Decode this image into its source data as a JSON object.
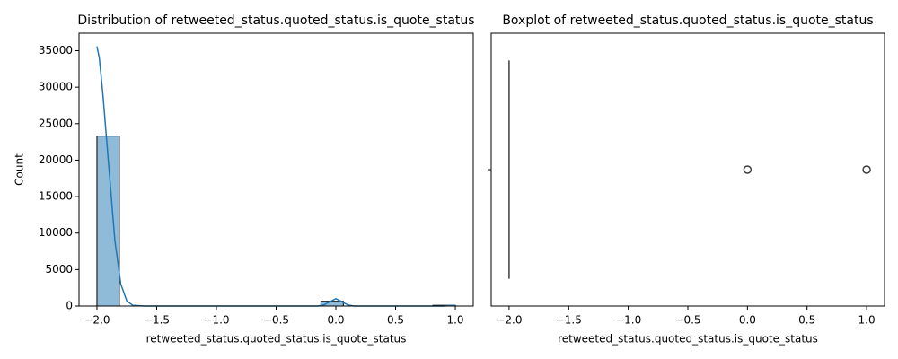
{
  "chart_data": [
    {
      "type": "histogram",
      "title": "Distribution of retweeted_status.quoted_status.is_quote_status",
      "xlabel": "retweeted_status.quoted_status.is_quote_status",
      "ylabel": "Count",
      "bins": [
        -2,
        -1.8125,
        -1.625,
        -1.4375,
        -1.25,
        -1.0625,
        -0.875,
        -0.6875,
        -0.5,
        -0.3125,
        -0.125,
        0.0625,
        0.25,
        0.4375,
        0.625,
        0.8125,
        1.0
      ],
      "counts": [
        23300,
        0,
        0,
        0,
        0,
        0,
        0,
        0,
        0,
        0,
        650,
        0,
        0,
        0,
        0,
        100
      ],
      "color": "rgba(31,119,180,0.5)",
      "edgecolor": "#000000",
      "kde": {
        "color": "#1f77b4",
        "x": [
          -2.0,
          -1.98,
          -1.95,
          -1.9,
          -1.85,
          -1.8,
          -1.75,
          -1.7,
          -1.6,
          -0.15,
          -0.1,
          -0.05,
          0.0,
          0.05,
          0.1,
          0.15,
          0.9,
          1.0
        ],
        "values": [
          35600,
          34000,
          29000,
          19000,
          9000,
          3000,
          700,
          100,
          0,
          0,
          150,
          600,
          1000,
          600,
          150,
          0,
          0,
          100
        ]
      },
      "xlim": [
        -2.15,
        1.15
      ],
      "xticks": [
        {
          "value": -2,
          "label": "−2.0"
        },
        {
          "value": -1.5,
          "label": "−1.5"
        },
        {
          "value": -1,
          "label": "−1.0"
        },
        {
          "value": -0.5,
          "label": "−0.5"
        },
        {
          "value": 0,
          "label": "0.0"
        },
        0.5,
        {
          "value": 1,
          "label": "1.0"
        }
      ],
      "ylim": [
        0,
        37400
      ],
      "yticks": [
        0,
        5000,
        10000,
        15000,
        20000,
        25000,
        30000,
        35000
      ]
    },
    {
      "type": "boxplot",
      "title": "Boxplot of retweeted_status.quoted_status.is_quote_status",
      "xlabel": "retweeted_status.quoted_status.is_quote_status",
      "color": "#1f77b4",
      "box": {
        "whislo": -2,
        "q1": -2,
        "median": -2,
        "q3": -2,
        "whishi": -2,
        "fliers": [
          0,
          1
        ]
      },
      "xlim": [
        -2.15,
        1.15
      ],
      "xticks": [
        {
          "value": -2,
          "label": "−2.0"
        },
        {
          "value": -1.5,
          "label": "−1.5"
        },
        {
          "value": -1,
          "label": "−1.0"
        },
        {
          "value": -0.5,
          "label": "−0.5"
        },
        {
          "value": 0,
          "label": "0.0"
        },
        0.5,
        {
          "value": 1,
          "label": "1.0"
        }
      ]
    }
  ]
}
